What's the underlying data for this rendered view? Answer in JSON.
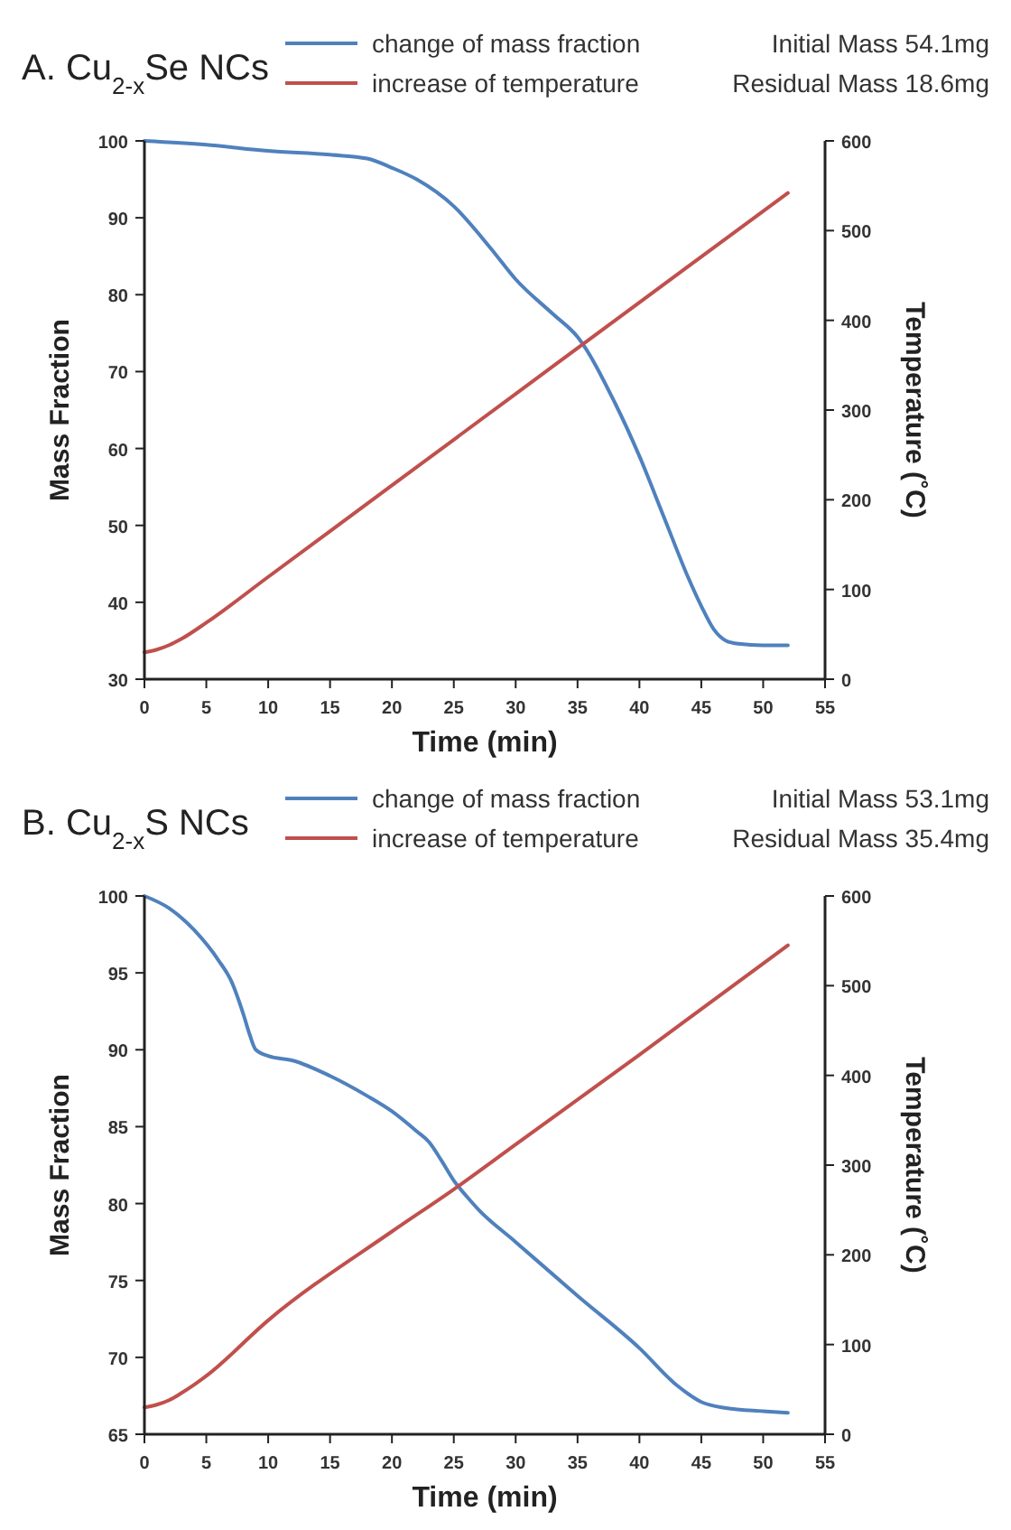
{
  "chart_data": [
    {
      "type": "line",
      "title": "A. Cu$_{2-x}$Se NCs",
      "xlabel": "Time (min)",
      "ylabel": "Mass Fraction",
      "y2label": "Temperature (˚C)",
      "annotations": [
        "Initial Mass 54.1mg",
        "Residual Mass 18.6mg"
      ],
      "xlim": [
        0,
        55
      ],
      "xticks": [
        0,
        5,
        10,
        15,
        20,
        25,
        30,
        35,
        40,
        45,
        50,
        55
      ],
      "ylim": [
        30,
        100
      ],
      "yticks": [
        30,
        40,
        50,
        60,
        70,
        80,
        90,
        100
      ],
      "y2lim": [
        0,
        600
      ],
      "y2ticks": [
        0,
        100,
        200,
        300,
        400,
        500,
        600
      ],
      "grid": false,
      "legend": "top",
      "marker": "none",
      "line_style": "solid",
      "series": [
        {
          "name": "change of mass fraction",
          "color": "#4f81bd",
          "x": [
            0,
            5,
            10,
            15,
            18,
            20,
            22,
            25,
            28,
            30,
            33,
            35,
            38,
            40,
            42,
            44,
            45,
            46,
            47,
            48,
            50,
            52
          ],
          "values": [
            100,
            99.5,
            98.7,
            98.2,
            97.7,
            96.5,
            95,
            91.5,
            86,
            82,
            77.5,
            74.5,
            66,
            59,
            51,
            43,
            39.5,
            36.5,
            35,
            34.6,
            34.4,
            34.4
          ]
        },
        {
          "name": "increase of temperature",
          "color": "#c0504d",
          "axis": "y2",
          "x": [
            0,
            1,
            2,
            3,
            5,
            10,
            20,
            30,
            40,
            52
          ],
          "values": [
            30,
            33,
            38,
            45,
            63,
            114,
            216,
            318,
            420,
            542
          ]
        }
      ]
    },
    {
      "type": "line",
      "title": "B. Cu$_{2-x}$S NCs",
      "xlabel": "Time (min)",
      "ylabel": "Mass Fraction",
      "y2label": "Temperature (˚C)",
      "annotations": [
        "Initial Mass 53.1mg",
        "Residual Mass 35.4mg"
      ],
      "xlim": [
        0,
        55
      ],
      "xticks": [
        0,
        5,
        10,
        15,
        20,
        25,
        30,
        35,
        40,
        45,
        50,
        55
      ],
      "ylim": [
        65,
        100
      ],
      "yticks": [
        65,
        70,
        75,
        80,
        85,
        90,
        95,
        100
      ],
      "y2lim": [
        0,
        600
      ],
      "y2ticks": [
        0,
        100,
        200,
        300,
        400,
        500,
        600
      ],
      "grid": false,
      "legend": "top",
      "marker": "none",
      "line_style": "solid",
      "series": [
        {
          "name": "change of mass fraction",
          "color": "#4f81bd",
          "x": [
            0,
            2,
            4,
            6,
            7,
            8,
            8.5,
            9,
            10,
            12,
            15,
            18,
            20,
            22,
            23,
            24,
            25,
            26,
            27,
            30,
            35,
            40,
            43,
            45,
            47,
            50,
            52
          ],
          "values": [
            100,
            99.2,
            97.8,
            95.8,
            94.5,
            92.3,
            91,
            90,
            89.6,
            89.3,
            88.3,
            87,
            86,
            84.7,
            84,
            82.8,
            81.5,
            80.5,
            79.6,
            77.5,
            74,
            70.6,
            68.2,
            67.1,
            66.7,
            66.5,
            66.4
          ]
        },
        {
          "name": "increase of temperature",
          "color": "#c0504d",
          "axis": "y2",
          "x": [
            0,
            1,
            2,
            3,
            5,
            10,
            20,
            25,
            30,
            40,
            52
          ],
          "values": [
            30,
            33,
            38,
            46,
            65,
            127,
            226,
            273,
            323,
            423,
            545
          ]
        }
      ]
    }
  ]
}
